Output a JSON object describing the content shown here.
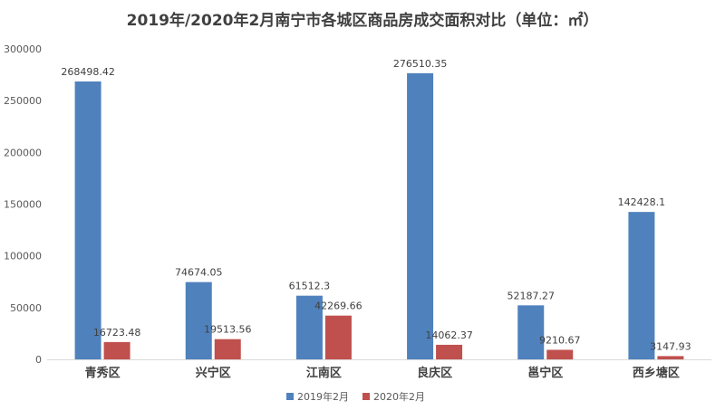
{
  "chart_data": {
    "type": "bar",
    "title": "2019年/2020年2月南宁市各城区商品房成交面积对比（单位：㎡）",
    "categories": [
      "青秀区",
      "兴宁区",
      "江南区",
      "良庆区",
      "邕宁区",
      "西乡塘区"
    ],
    "series": [
      {
        "name": "2019年2月",
        "values": [
          268498.42,
          74674.05,
          61512.3,
          276510.35,
          52187.27,
          142428.1
        ],
        "labels": [
          "268498.42",
          "74674.05",
          "61512.3",
          "276510.35",
          "52187.27",
          "142428.1"
        ],
        "color": "#4f81bd"
      },
      {
        "name": "2020年2月",
        "values": [
          16723.48,
          19513.56,
          42269.66,
          14062.37,
          9210.67,
          3147.93
        ],
        "labels": [
          "16723.48",
          "19513.56",
          "42269.66",
          "14062.37",
          "9210.67",
          "3147.93"
        ],
        "color": "#c0504d"
      }
    ],
    "ylim": [
      0,
      300000
    ],
    "yticks": [
      0,
      50000,
      100000,
      150000,
      200000,
      250000,
      300000
    ],
    "ytick_labels": [
      "0",
      "50000",
      "100000",
      "150000",
      "200000",
      "250000",
      "300000"
    ],
    "grid": false,
    "legend_position": "bottom"
  }
}
